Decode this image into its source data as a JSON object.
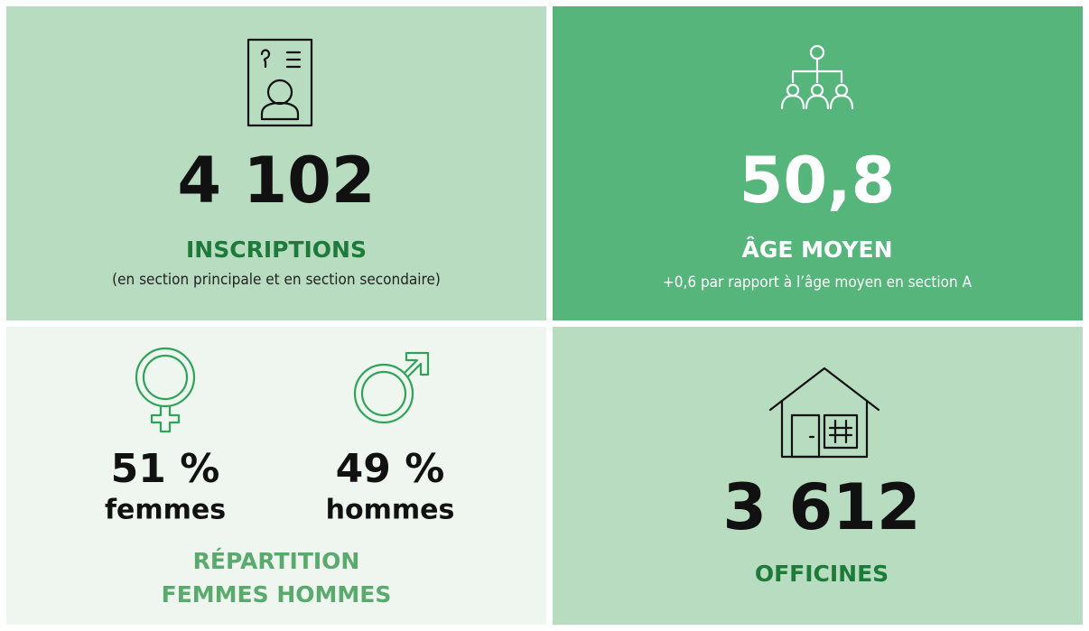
{
  "tiles": {
    "inscriptions": {
      "value": "4 102",
      "label": "INSCRIPTIONS",
      "note": "(en section principale et en section secondaire)"
    },
    "age": {
      "value": "50,8",
      "label": "ÂGE MOYEN",
      "note": "+0,6 par rapport à l’âge moyen en section A"
    },
    "repartition": {
      "women": {
        "value": "51 %",
        "label": "femmes"
      },
      "men": {
        "value": "49 %",
        "label": "hommes"
      },
      "label": [
        "RÉPARTITION",
        "FEMMES HOMMES"
      ]
    },
    "officines": {
      "value": "3 612",
      "label": "OFFICINES"
    }
  }
}
